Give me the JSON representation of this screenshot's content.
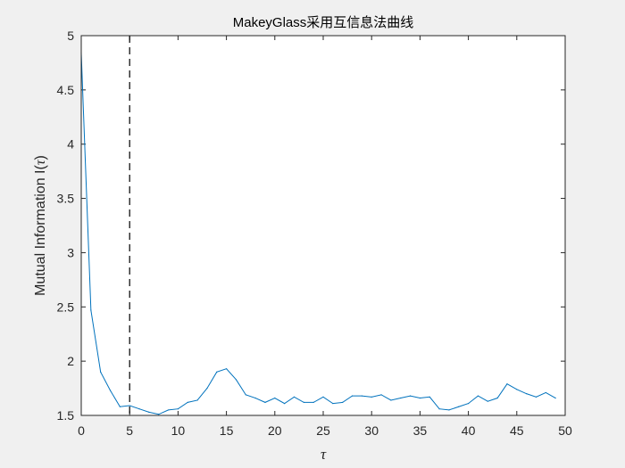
{
  "chart_data": {
    "type": "line",
    "title": "MakeyGlass采用互信息法曲线",
    "xlabel": "τ",
    "ylabel_prefix": "Mutual Information I(",
    "ylabel_symbol": "τ",
    "ylabel_suffix": ")",
    "xlim": [
      0,
      50
    ],
    "ylim": [
      1.5,
      5
    ],
    "xticks": [
      "0",
      "5",
      "10",
      "15",
      "20",
      "25",
      "30",
      "35",
      "40",
      "45",
      "50"
    ],
    "yticks": [
      "1.5",
      "2",
      "2.5",
      "3",
      "3.5",
      "4",
      "4.5",
      "5"
    ],
    "grid": false,
    "line_color": "#0072bd",
    "reference_line": {
      "x": 5,
      "style": "dashed",
      "color": "#000000"
    },
    "series": [
      {
        "x": [
          0,
          1,
          2,
          3,
          4,
          5,
          6,
          7,
          8,
          9,
          10,
          11,
          12,
          13,
          14,
          15,
          16,
          17,
          18,
          19,
          20,
          21,
          22,
          23,
          24,
          25,
          26,
          27,
          28,
          29,
          30,
          31,
          32,
          33,
          34,
          35,
          36,
          37,
          38,
          39,
          40,
          41,
          42,
          43,
          44,
          45,
          46,
          47,
          48,
          49
        ],
        "values": [
          4.84,
          2.47,
          1.9,
          1.73,
          1.58,
          1.59,
          1.56,
          1.53,
          1.51,
          1.55,
          1.56,
          1.62,
          1.64,
          1.75,
          1.9,
          1.93,
          1.83,
          1.69,
          1.66,
          1.62,
          1.66,
          1.61,
          1.67,
          1.62,
          1.62,
          1.67,
          1.61,
          1.62,
          1.68,
          1.68,
          1.67,
          1.69,
          1.64,
          1.66,
          1.68,
          1.66,
          1.67,
          1.56,
          1.55,
          1.58,
          1.61,
          1.68,
          1.63,
          1.66,
          1.79,
          1.74,
          1.7,
          1.67,
          1.71,
          1.66
        ]
      }
    ]
  }
}
